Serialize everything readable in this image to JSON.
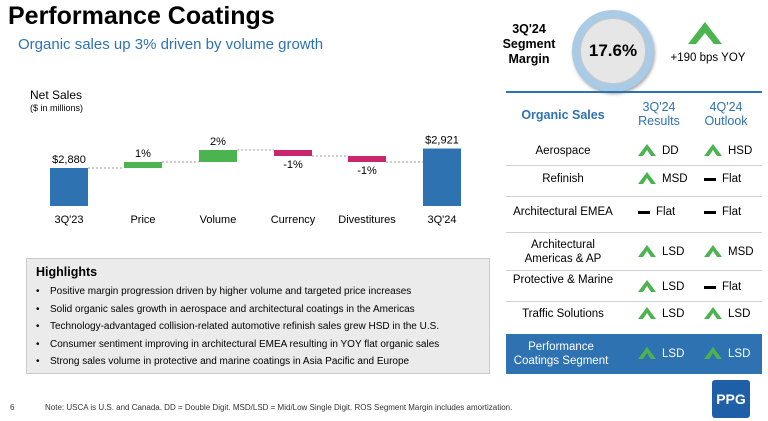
{
  "header": {
    "title": "Performance Coatings",
    "subtitle": "Organic sales up 3% driven by volume growth"
  },
  "margin": {
    "label": "3Q'24 Segment Margin",
    "value": "17.6%",
    "yoy": "+190 bps YOY"
  },
  "chart_data": {
    "type": "bar",
    "subtype": "waterfall",
    "title": "Net Sales",
    "subtitle": "($ in millions)",
    "categories": [
      "3Q'23",
      "Price",
      "Volume",
      "Currency",
      "Divestitures",
      "3Q'24"
    ],
    "values": [
      2880,
      1,
      2,
      -1,
      -1,
      2921
    ],
    "labels": [
      "$2,880",
      "1%",
      "2%",
      "-1%",
      "-1%",
      "$2,921"
    ],
    "colors": {
      "total": "#2e72b2",
      "increase": "#4bb34f",
      "decrease": "#c9266d"
    }
  },
  "highlights": {
    "title": "Highlights",
    "items": [
      "Positive margin progression driven by higher volume and targeted price increases",
      "Solid organic sales growth in aerospace and architectural coatings in the Americas",
      "Technology-advantaged collision-related automotive refinish sales grew HSD in the U.S.",
      "Consumer sentiment improving in architectural EMEA resulting in YOY flat organic sales",
      "Strong sales volume in protective and marine coatings in Asia Pacific and Europe"
    ]
  },
  "organic_sales": {
    "header": "Organic Sales",
    "col_results": "3Q'24 Results",
    "col_outlook": "4Q'24 Outlook",
    "rows": [
      {
        "name": "Aerospace",
        "results": "DD",
        "results_icon": "up",
        "outlook": "HSD",
        "outlook_icon": "up"
      },
      {
        "name": "Refinish",
        "results": "MSD",
        "results_icon": "up",
        "outlook": "Flat",
        "outlook_icon": "flat"
      },
      {
        "name": "Architectural EMEA",
        "results": "Flat",
        "results_icon": "flat",
        "outlook": "Flat",
        "outlook_icon": "flat"
      },
      {
        "name": "Architectural Americas & AP",
        "results": "LSD",
        "results_icon": "up",
        "outlook": "MSD",
        "outlook_icon": "up"
      },
      {
        "name": "Protective & Marine",
        "results": "LSD",
        "results_icon": "up",
        "outlook": "Flat",
        "outlook_icon": "flat"
      },
      {
        "name": "Traffic Solutions",
        "results": "LSD",
        "results_icon": "up",
        "outlook": "LSD",
        "outlook_icon": "up"
      },
      {
        "name": "Performance Coatings Segment",
        "results": "LSD",
        "results_icon": "up",
        "outlook": "LSD",
        "outlook_icon": "up"
      }
    ]
  },
  "footer": {
    "page": "6",
    "note": "Note: USCA is U.S. and Canada. DD = Double Digit. MSD/LSD =  Mid/Low Single Digit. ROS Segment Margin includes amortization."
  },
  "logo_text": "PPG",
  "accent_colors": {
    "blue": "#2e72b2",
    "green": "#4bb34f",
    "magenta": "#c9266d"
  }
}
